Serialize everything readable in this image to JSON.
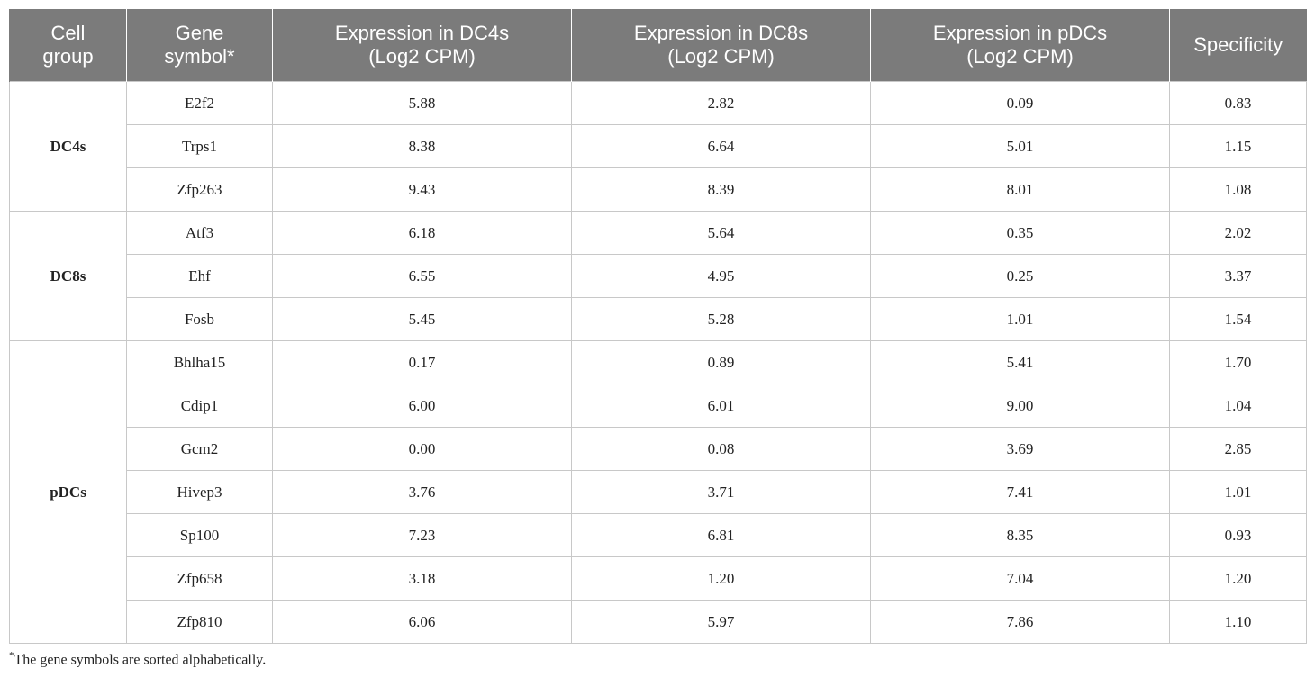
{
  "table": {
    "headers": {
      "cell_group": [
        "Cell",
        "group"
      ],
      "gene_symbol": [
        "Gene",
        "symbol*"
      ],
      "dc4s": [
        "Expression in DC4s",
        "(Log2 CPM)"
      ],
      "dc8s": [
        "Expression in DC8s",
        "(Log2 CPM)"
      ],
      "pdcs": [
        "Expression in pDCs",
        "(Log2 CPM)"
      ],
      "specificity": "Specificity"
    },
    "groups": [
      {
        "name": "DC4s",
        "rows": [
          {
            "gene": "E2f2",
            "dc4s": "5.88",
            "dc8s": "2.82",
            "pdcs": "0.09",
            "spec": "0.83"
          },
          {
            "gene": "Trps1",
            "dc4s": "8.38",
            "dc8s": "6.64",
            "pdcs": "5.01",
            "spec": "1.15"
          },
          {
            "gene": "Zfp263",
            "dc4s": "9.43",
            "dc8s": "8.39",
            "pdcs": "8.01",
            "spec": "1.08"
          }
        ]
      },
      {
        "name": "DC8s",
        "rows": [
          {
            "gene": "Atf3",
            "dc4s": "6.18",
            "dc8s": "5.64",
            "pdcs": "0.35",
            "spec": "2.02"
          },
          {
            "gene": "Ehf",
            "dc4s": "6.55",
            "dc8s": "4.95",
            "pdcs": "0.25",
            "spec": "3.37"
          },
          {
            "gene": "Fosb",
            "dc4s": "5.45",
            "dc8s": "5.28",
            "pdcs": "1.01",
            "spec": "1.54"
          }
        ]
      },
      {
        "name": "pDCs",
        "rows": [
          {
            "gene": "Bhlha15",
            "dc4s": "0.17",
            "dc8s": "0.89",
            "pdcs": "5.41",
            "spec": "1.70"
          },
          {
            "gene": "Cdip1",
            "dc4s": "6.00",
            "dc8s": "6.01",
            "pdcs": "9.00",
            "spec": "1.04"
          },
          {
            "gene": "Gcm2",
            "dc4s": "0.00",
            "dc8s": "0.08",
            "pdcs": "3.69",
            "spec": "2.85"
          },
          {
            "gene": "Hivep3",
            "dc4s": "3.76",
            "dc8s": "3.71",
            "pdcs": "7.41",
            "spec": "1.01"
          },
          {
            "gene": "Sp100",
            "dc4s": "7.23",
            "dc8s": "6.81",
            "pdcs": "8.35",
            "spec": "0.93"
          },
          {
            "gene": "Zfp658",
            "dc4s": "3.18",
            "dc8s": "1.20",
            "pdcs": "7.04",
            "spec": "1.20"
          },
          {
            "gene": "Zfp810",
            "dc4s": "6.06",
            "dc8s": "5.97",
            "pdcs": "7.86",
            "spec": "1.10"
          }
        ]
      }
    ]
  },
  "footnote": {
    "marker": "*",
    "text": "The gene symbols are sorted alphabetically."
  }
}
